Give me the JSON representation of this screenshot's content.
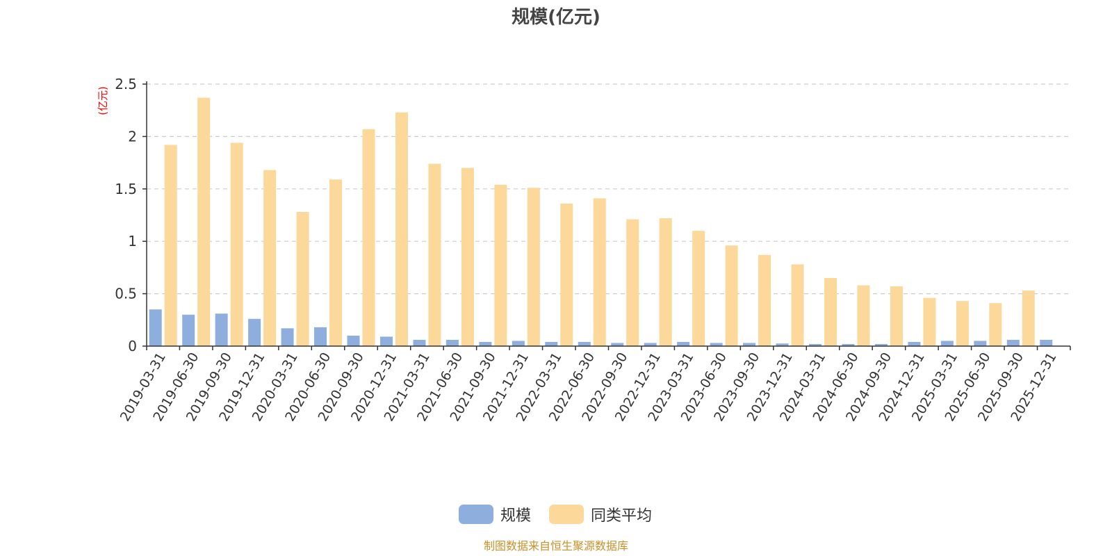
{
  "chart_data": {
    "type": "bar",
    "title": "规模(亿元)",
    "y_unit_label": "(亿元)",
    "ylim": [
      0,
      2.5
    ],
    "y_ticks": [
      "0",
      "0.5",
      "1",
      "1.5",
      "2",
      "2.5"
    ],
    "grid": true,
    "legend_position": "bottom-center",
    "categories": [
      "2019-03-31",
      "2019-06-30",
      "2019-09-30",
      "2019-12-31",
      "2020-03-31",
      "2020-06-30",
      "2020-09-30",
      "2020-12-31",
      "2021-03-31",
      "2021-06-30",
      "2021-09-30",
      "2021-12-31",
      "2022-03-31",
      "2022-06-30",
      "2022-09-30",
      "2022-12-31",
      "2023-03-31",
      "2023-06-30",
      "2023-09-30",
      "2023-12-31",
      "2024-03-31",
      "2024-06-30",
      "2024-09-30",
      "2024-12-31",
      "2025-03-31",
      "2025-06-30",
      "2025-09-30",
      "2025-12-31"
    ],
    "series": [
      {
        "name": "规模",
        "color": "#8eaedd",
        "values": [
          0.35,
          0.3,
          0.31,
          0.26,
          0.17,
          0.18,
          0.1,
          0.09,
          0.06,
          0.06,
          0.04,
          0.05,
          0.04,
          0.04,
          0.03,
          0.03,
          0.04,
          0.03,
          0.03,
          0.025,
          0.02,
          0.02,
          0.02,
          0.04,
          0.05,
          0.05,
          0.06,
          0.06
        ]
      },
      {
        "name": "同类平均",
        "color": "#fcd99a",
        "values": [
          1.92,
          2.37,
          1.94,
          1.68,
          1.28,
          1.59,
          2.07,
          2.23,
          1.74,
          1.7,
          1.54,
          1.51,
          1.36,
          1.41,
          1.21,
          1.22,
          1.1,
          0.96,
          0.87,
          0.78,
          0.65,
          0.58,
          0.57,
          0.46,
          0.43,
          0.41,
          0.53,
          null
        ]
      }
    ]
  },
  "source_note": "制图数据来自恒生聚源数据库"
}
